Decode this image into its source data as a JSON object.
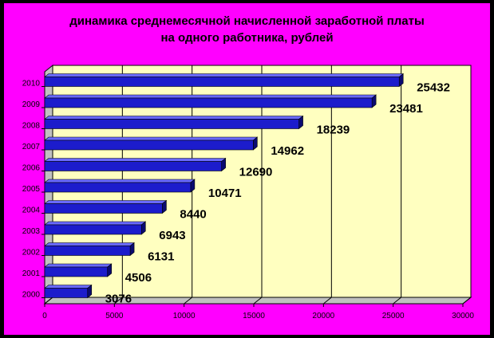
{
  "chart_data": {
    "type": "bar",
    "orientation": "horizontal",
    "title": [
      "динамика среднемесячной начисленной заработной платы",
      "на одного работника, рублей"
    ],
    "categories": [
      "2000",
      "2001",
      "2002",
      "2003",
      "2004",
      "2005",
      "2006",
      "2007",
      "2008",
      "2009",
      "2010"
    ],
    "values": [
      3076,
      4506,
      6131,
      6943,
      8440,
      10471,
      12690,
      14962,
      18239,
      23481,
      25432
    ],
    "data_labels": [
      "3076",
      "4506",
      "6131",
      "6943",
      "8440",
      "10471",
      "12690",
      "14962",
      "18239",
      "23481",
      "25432"
    ],
    "xlim": [
      0,
      30000
    ],
    "xticks": [
      0,
      5000,
      10000,
      15000,
      20000,
      25000,
      30000
    ],
    "xtick_labels": [
      "0",
      "5000",
      "10000",
      "15000",
      "20000",
      "25000",
      "30000"
    ],
    "gridlines": "vertical",
    "legend": "none",
    "three_d": true
  },
  "colors": {
    "background": "#000000",
    "frame": "#ff00ff",
    "plot_area": "#ffffc0",
    "bar_front": "#1c1ccc",
    "bar_top": "#6a6aff",
    "bar_side": "#0a0a70"
  }
}
